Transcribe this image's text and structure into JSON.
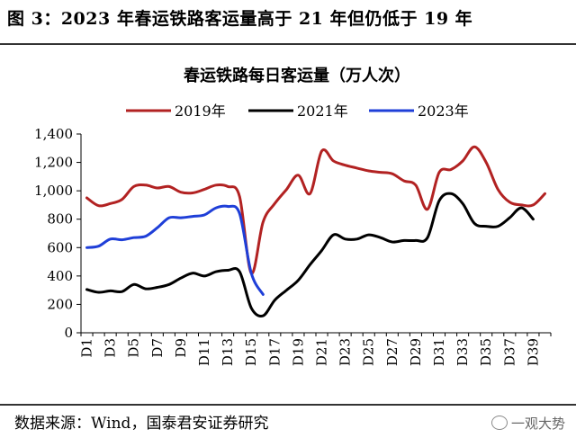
{
  "figure": {
    "title": "图 3：2023 年春运铁路客运量高于 21 年但仍低于 19 年",
    "source": "数据来源：Wind，国泰君安证券研究",
    "watermark": "一观大势"
  },
  "colors": {
    "s2019": "#b22222",
    "s2021": "#000000",
    "s2023": "#1f3fd8",
    "axis": "#000000"
  },
  "chart_data": {
    "type": "line",
    "title": "春运铁路每日客运量（万人次）",
    "xlabel": "",
    "ylabel": "",
    "ylim": [
      0,
      1400
    ],
    "yticks": [
      0,
      200,
      400,
      600,
      800,
      1000,
      1200,
      1400
    ],
    "ytick_labels": [
      "0",
      "200",
      "400",
      "600",
      "800",
      "1,000",
      "1,200",
      "1,400"
    ],
    "categories": [
      "D1",
      "D2",
      "D3",
      "D4",
      "D5",
      "D6",
      "D7",
      "D8",
      "D9",
      "D10",
      "D11",
      "D12",
      "D13",
      "D14",
      "D15",
      "D16",
      "D17",
      "D18",
      "D19",
      "D20",
      "D21",
      "D22",
      "D23",
      "D24",
      "D25",
      "D26",
      "D27",
      "D28",
      "D29",
      "D30",
      "D31",
      "D32",
      "D33",
      "D34",
      "D35",
      "D36",
      "D37",
      "D38",
      "D39",
      "D40"
    ],
    "xtick_labels": [
      "D1",
      "D3",
      "D5",
      "D7",
      "D9",
      "D11",
      "D13",
      "D15",
      "D17",
      "D19",
      "D21",
      "D23",
      "D25",
      "D27",
      "D29",
      "D31",
      "D33",
      "D35",
      "D37",
      "D39"
    ],
    "legend_position": "top",
    "grid": false,
    "series": [
      {
        "name": "2019年",
        "color_key": "s2019",
        "values": [
          950,
          895,
          910,
          940,
          1030,
          1040,
          1020,
          1030,
          990,
          985,
          1010,
          1040,
          1030,
          960,
          420,
          780,
          910,
          1010,
          1110,
          980,
          1280,
          1210,
          1180,
          1160,
          1140,
          1130,
          1120,
          1070,
          1040,
          870,
          1130,
          1150,
          1210,
          1310,
          1200,
          1010,
          920,
          900,
          900,
          980
        ]
      },
      {
        "name": "2021年",
        "color_key": "s2021",
        "values": [
          305,
          285,
          295,
          290,
          340,
          310,
          320,
          340,
          385,
          420,
          400,
          430,
          440,
          430,
          175,
          120,
          230,
          300,
          370,
          480,
          580,
          690,
          660,
          660,
          690,
          670,
          640,
          650,
          650,
          670,
          930,
          980,
          910,
          770,
          750,
          750,
          810,
          880,
          800,
          null
        ]
      },
      {
        "name": "2023年",
        "color_key": "s2023",
        "values": [
          600,
          610,
          660,
          655,
          670,
          680,
          740,
          810,
          810,
          820,
          830,
          880,
          890,
          840,
          420,
          270,
          null,
          null,
          null,
          null,
          null,
          null,
          null,
          null,
          null,
          null,
          null,
          null,
          null,
          null,
          null,
          null,
          null,
          null,
          null,
          null,
          null,
          null,
          null,
          null
        ]
      }
    ]
  }
}
